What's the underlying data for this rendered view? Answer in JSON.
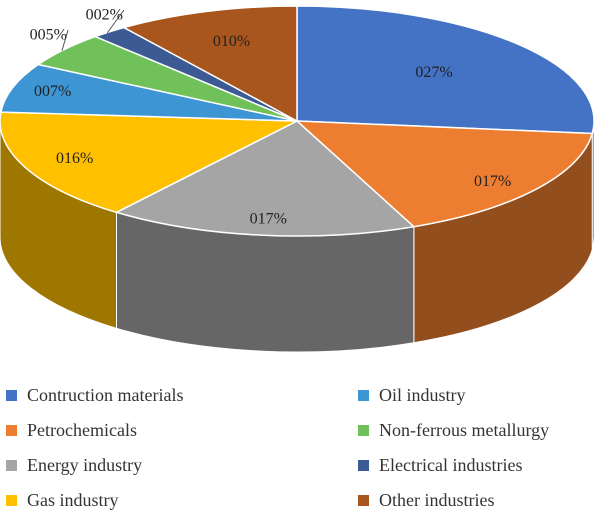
{
  "chart_data": {
    "type": "pie",
    "style": "3d",
    "legend_position": "bottom",
    "slices": [
      {
        "name": "Contruction materials",
        "label": "027%",
        "value": 27,
        "color": "#4472C4"
      },
      {
        "name": "Petrochemicals",
        "label": "017%",
        "value": 17,
        "color": "#ED7D31"
      },
      {
        "name": "Energy industry",
        "label": "017%",
        "value": 17,
        "color": "#A5A5A5"
      },
      {
        "name": "Gas industry",
        "label": "016%",
        "value": 16,
        "color": "#FFC000"
      },
      {
        "name": "Oil industry",
        "label": "007%",
        "value": 7,
        "color": "#3E95D3"
      },
      {
        "name": "Non-ferrous metallurgy",
        "label": "005%",
        "value": 5,
        "color": "#70C15A"
      },
      {
        "name": "Electrical industries",
        "label": "002%",
        "value": 2,
        "color": "#3C5A94"
      },
      {
        "name": "Other industries",
        "label": "010%",
        "value": 10,
        "color": "#A9561E"
      }
    ]
  }
}
